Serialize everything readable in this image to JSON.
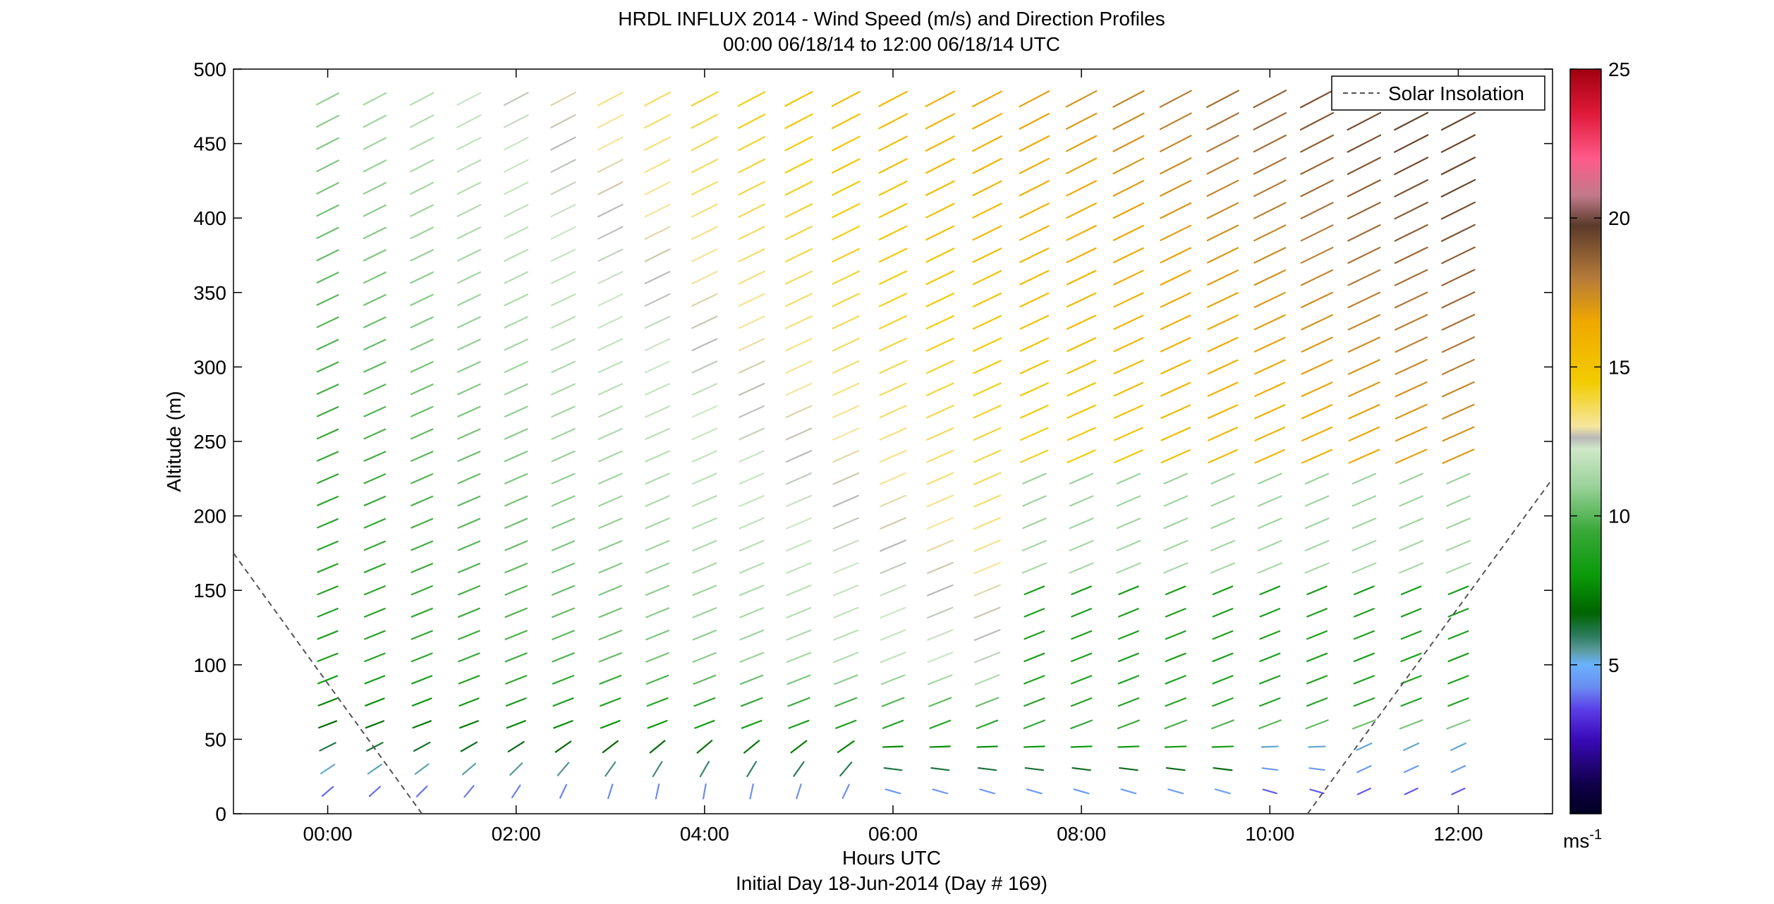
{
  "chart_data": {
    "type": "wind-barb",
    "title": "HRDL INFLUX 2014 - Wind Speed (m/s) and Direction Profiles",
    "subtitle": "00:00 06/18/14 to 12:00 06/18/14  UTC",
    "xlabel": "Hours UTC",
    "xlabel2": "Initial Day 18-Jun-2014 (Day # 169)",
    "ylabel": "Altitude (m)",
    "xlim": [
      -1.0,
      13.0
    ],
    "ylim": [
      0,
      500
    ],
    "x_ticks": [
      0,
      2,
      4,
      6,
      8,
      10,
      12
    ],
    "x_tick_labels": [
      "00:00",
      "02:00",
      "04:00",
      "06:00",
      "08:00",
      "10:00",
      "12:00"
    ],
    "y_ticks": [
      0,
      50,
      100,
      150,
      200,
      250,
      300,
      350,
      400,
      450,
      500
    ],
    "y_tick_labels": [
      "0",
      "50",
      "100",
      "150",
      "200",
      "250",
      "300",
      "350",
      "400",
      "450",
      "500"
    ],
    "colorbar": {
      "min": 0,
      "max": 25,
      "ticks": [
        5,
        10,
        15,
        20,
        25
      ],
      "tick_labels": [
        "5",
        "10",
        "15",
        "20",
        "25"
      ],
      "unit_label": "ms",
      "unit_exponent": "-1"
    },
    "legend": {
      "entries": [
        "Solar Insolation"
      ],
      "placement": "top-right"
    },
    "grid": false,
    "profiles": {
      "time_hours": [
        0,
        0.5,
        1,
        1.5,
        2,
        2.5,
        3,
        3.5,
        4,
        4.5,
        5,
        5.5,
        6,
        6.5,
        7,
        7.5,
        8,
        8.5,
        9,
        9.5,
        10,
        10.5,
        11,
        11.5,
        12
      ],
      "altitudes_m": [
        15,
        30,
        45,
        60,
        75,
        90,
        105,
        120,
        135,
        150,
        165,
        180,
        195,
        210,
        225,
        240,
        255,
        270,
        285,
        300,
        315,
        330,
        345,
        360,
        375,
        390,
        405,
        420,
        435,
        450,
        465,
        480
      ]
    },
    "solar_insolation": {
      "style": "dashed",
      "color": "#555555",
      "segments": [
        {
          "x": [
            -1.0,
            1.0
          ],
          "y": [
            175,
            0
          ]
        },
        {
          "x": [
            10.4,
            13.0
          ],
          "y": [
            0,
            225
          ]
        }
      ]
    }
  }
}
